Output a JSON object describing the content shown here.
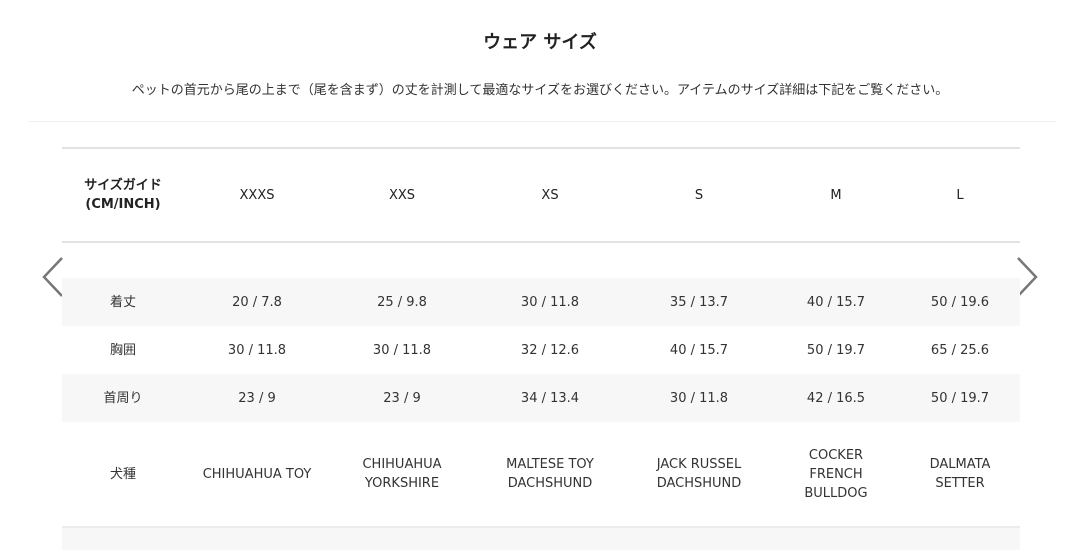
{
  "title": "ウェア サイズ",
  "subtitle": "ペットの首元から尾の上まで（尾を含まず）の丈を計測して最適なサイズをお選びください。アイテムのサイズ詳細は下記をご覧ください。",
  "table": {
    "header_label": "サイズガイド\n(CM/INCH)",
    "sizes": [
      "XXXS",
      "XXS",
      "XS",
      "S",
      "M",
      "L"
    ],
    "rows": [
      {
        "label": "着丈",
        "values": [
          "20 / 7.8",
          "25 / 9.8",
          "30 / 11.8",
          "35 / 13.7",
          "40 / 15.7",
          "50 / 19.6"
        ]
      },
      {
        "label": "胸囲",
        "values": [
          "30 / 11.8",
          "30 / 11.8",
          "32 / 12.6",
          "40 / 15.7",
          "50 / 19.7",
          "65 / 25.6"
        ]
      },
      {
        "label": "首周り",
        "values": [
          "23 / 9",
          "23 / 9",
          "34 / 13.4",
          "30 / 11.8",
          "42 / 16.5",
          "50 / 19.7"
        ]
      },
      {
        "label": "犬種",
        "values": [
          "CHIHUAHUA TOY",
          "CHIHUAHUA\nYORKSHIRE",
          "MALTESE TOY\nDACHSHUND",
          "JACK RUSSEL\nDACHSHUND",
          "COCKER\nFRENCH\nBULLDOG",
          "DALMATA\nSETTER"
        ]
      }
    ]
  },
  "icons": {
    "prev": "chevron-left-icon",
    "next": "chevron-right-icon"
  }
}
